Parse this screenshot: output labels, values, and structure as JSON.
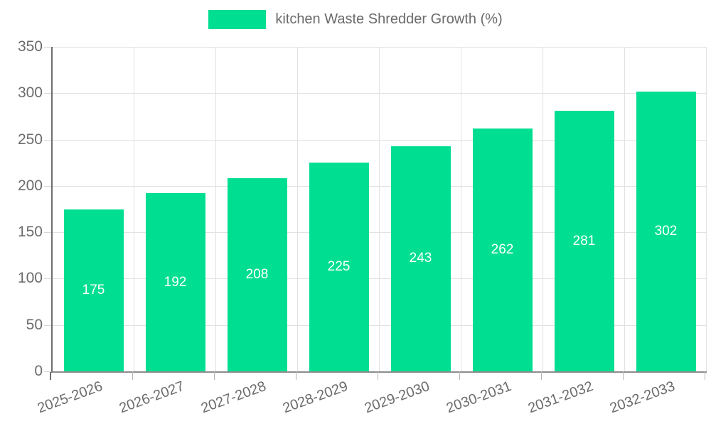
{
  "legend": {
    "label": "kitchen Waste Shredder Growth (%)",
    "swatch_color": "#00de91"
  },
  "chart_data": {
    "type": "bar",
    "title": "kitchen Waste Shredder Growth (%)",
    "categories": [
      "2025-2026",
      "2026-2027",
      "2027-2028",
      "2028-2029",
      "2029-2030",
      "2030-2031",
      "2031-2032",
      "2032-2033"
    ],
    "values": [
      175,
      192,
      208,
      225,
      243,
      262,
      281,
      302
    ],
    "value_labels": [
      "175",
      "192",
      "208",
      "225",
      "243",
      "262",
      "281",
      "302"
    ],
    "xlabel": "",
    "ylabel": "",
    "ylim": [
      0,
      350
    ],
    "ytick_step": 50,
    "ytick_labels": [
      "0",
      "50",
      "100",
      "150",
      "200",
      "250",
      "300",
      "350"
    ],
    "grid": true,
    "legend_position": "top",
    "bar_color": "#00de91",
    "value_label_color": "#ffffff",
    "axis_text_color": "#6b6b6b",
    "gridline_color": "#e2e2e2"
  }
}
